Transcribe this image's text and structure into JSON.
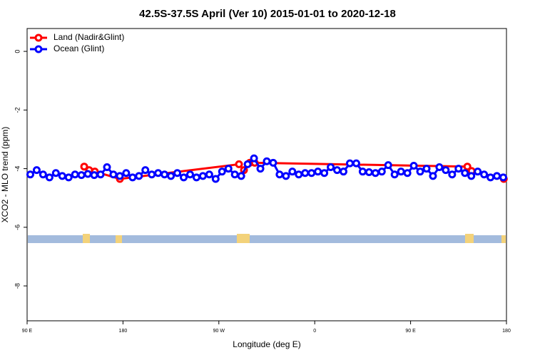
{
  "chart_data": {
    "type": "line",
    "title": "42.5S-37.5S April (Ver 10)   2015-01-01 to 2020-12-18",
    "x_label": "Longitude (deg E)",
    "y_label": "XCO2 - MLO trend (ppm)",
    "xlim": [
      90,
      540
    ],
    "ylim": [
      -9.19,
      0.78
    ],
    "xticks": [
      {
        "value": 90,
        "label": "90 E"
      },
      {
        "value": 180,
        "label": "180"
      },
      {
        "value": 270,
        "label": "90 W"
      },
      {
        "value": 360,
        "label": "0"
      },
      {
        "value": 450,
        "label": "90 E"
      },
      {
        "value": 540,
        "label": "180"
      }
    ],
    "yticks": [
      0,
      -2,
      -4,
      -6,
      -8
    ],
    "legend": "top-left",
    "series": [
      {
        "name": "Land (Nadir&Glint)",
        "color": "#ff0000",
        "x": [
          143.6,
          148.3,
          153.6,
          177.1,
          288.9,
          293.6,
          299,
          303.7,
          503.3,
          507.3,
          537.5
        ],
        "values": [
          -3.93,
          -4.05,
          -4.1,
          -4.35,
          -3.85,
          -4.05,
          -3.8,
          -3.8,
          -3.93,
          -4.08,
          -4.35
        ]
      },
      {
        "name": "Ocean (Glint)",
        "color": "#0000ff",
        "x": [
          93,
          99,
          105,
          111,
          117,
          123,
          129,
          135,
          141,
          147,
          153,
          159,
          165,
          171,
          177,
          183,
          189,
          195,
          201,
          207,
          213,
          219,
          225,
          231,
          237,
          243,
          249,
          255,
          261,
          267,
          273,
          279,
          285,
          291,
          297,
          303,
          309,
          315,
          321,
          327,
          333,
          339,
          345,
          351,
          357,
          363,
          369,
          375,
          381,
          387,
          393,
          399,
          405,
          411,
          417,
          423,
          429,
          435,
          441,
          447,
          453,
          459,
          465,
          471,
          477,
          483,
          489,
          495,
          501,
          507,
          513,
          519,
          525,
          531,
          537
        ],
        "values": [
          -4.2,
          -4.05,
          -4.2,
          -4.3,
          -4.15,
          -4.25,
          -4.3,
          -4.2,
          -4.22,
          -4.18,
          -4.22,
          -4.2,
          -3.95,
          -4.2,
          -4.25,
          -4.15,
          -4.3,
          -4.25,
          -4.05,
          -4.2,
          -4.15,
          -4.2,
          -4.25,
          -4.15,
          -4.3,
          -4.2,
          -4.3,
          -4.25,
          -4.2,
          -4.35,
          -4.1,
          -4.0,
          -4.2,
          -4.25,
          -3.85,
          -3.65,
          -4.0,
          -3.75,
          -3.8,
          -4.2,
          -4.25,
          -4.1,
          -4.2,
          -4.15,
          -4.15,
          -4.1,
          -4.15,
          -3.95,
          -4.05,
          -4.1,
          -3.82,
          -3.82,
          -4.1,
          -4.12,
          -4.15,
          -4.1,
          -3.88,
          -4.2,
          -4.1,
          -4.15,
          -3.9,
          -4.1,
          -4.0,
          -4.25,
          -3.95,
          -4.05,
          -4.2,
          -4.0,
          -4.15,
          -4.25,
          -4.1,
          -4.2,
          -4.3,
          -4.25,
          -4.3
        ]
      }
    ]
  }
}
